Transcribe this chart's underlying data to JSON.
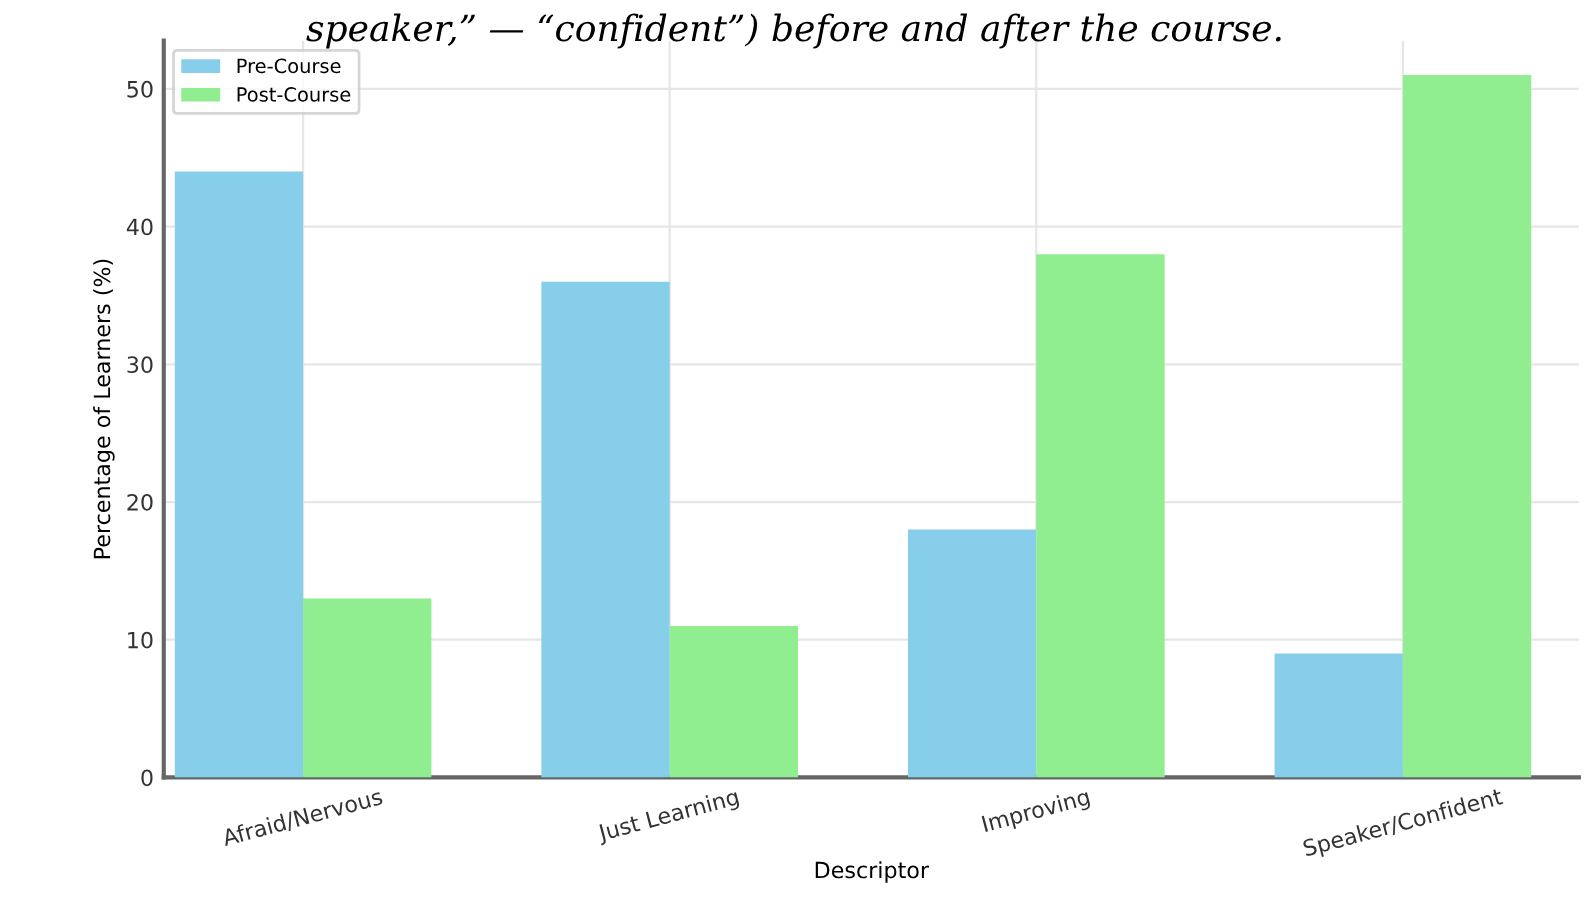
{
  "chart_data": {
    "type": "bar",
    "subtitle": "speaker,” — “confident”) before and after the course.",
    "xlabel": "Descriptor",
    "ylabel": "Percentage of Learners (%)",
    "categories": [
      "Afraid/Nervous",
      "Just Learning",
      "Improving",
      "Speaker/Confident"
    ],
    "series": [
      {
        "name": "Pre-Course",
        "color": "#87ceeb",
        "values": [
          44,
          36,
          18,
          9
        ]
      },
      {
        "name": "Post-Course",
        "color": "#90ee90",
        "values": [
          13,
          11,
          38,
          51
        ]
      }
    ],
    "ylim": [
      0,
      53.5
    ],
    "yticks": [
      0,
      10,
      20,
      30,
      40,
      50
    ],
    "grid": true,
    "legend": "top left"
  }
}
